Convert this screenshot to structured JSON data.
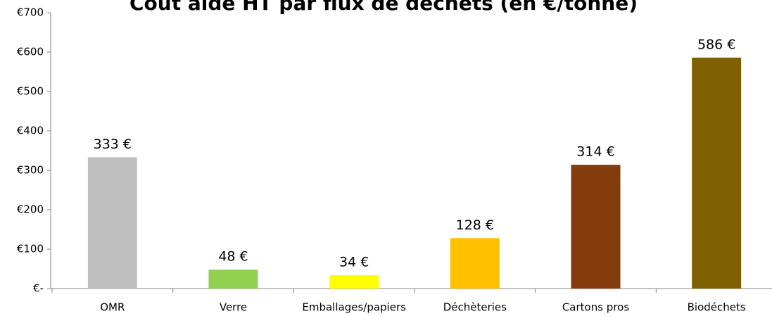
{
  "chart_data": {
    "type": "bar",
    "title": "Coût aide HT par flux de déchets (en €/tonne)",
    "categories": [
      "OMR",
      "Verre",
      "Emballages/papiers",
      "Déchèteries",
      "Cartons pros",
      "Biodéchets"
    ],
    "values": [
      333,
      48,
      34,
      128,
      314,
      586
    ],
    "value_labels": [
      "333 €",
      "48 €",
      "34 €",
      "128 €",
      "314 €",
      "586 €"
    ],
    "colors": [
      "#bfbfbf",
      "#92d050",
      "#ffff00",
      "#ffc000",
      "#843c0c",
      "#7f6000"
    ],
    "ylim": [
      0,
      700
    ],
    "yticks": [
      {
        "value": 0,
        "label": "€-"
      },
      {
        "value": 100,
        "label": "€100"
      },
      {
        "value": 200,
        "label": "€200"
      },
      {
        "value": 300,
        "label": "€300"
      },
      {
        "value": 400,
        "label": "€400"
      },
      {
        "value": 500,
        "label": "€500"
      },
      {
        "value": 600,
        "label": "€600"
      },
      {
        "value": 700,
        "label": "€700"
      }
    ],
    "grid": false
  }
}
